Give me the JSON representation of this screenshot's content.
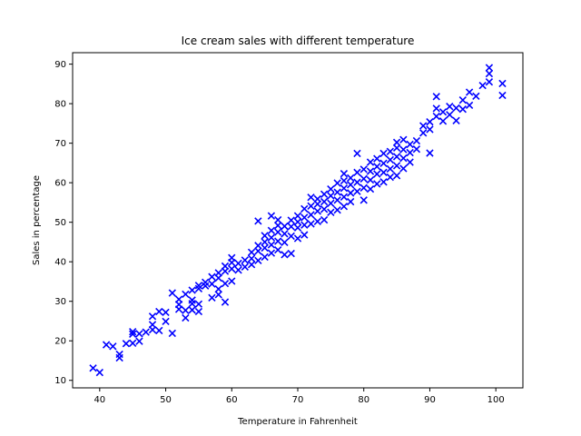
{
  "chart_data": {
    "type": "scatter",
    "title": "Ice cream sales with different temperature",
    "xlabel": "Temperature in Fahrenheit",
    "ylabel": "Sales in percentage",
    "xlim": [
      35.9,
      104.1
    ],
    "ylim": [
      8.1,
      92.9
    ],
    "xticks": [
      40,
      50,
      60,
      70,
      80,
      90,
      100
    ],
    "yticks": [
      10,
      20,
      30,
      40,
      50,
      60,
      70,
      80,
      90
    ],
    "grid": false,
    "legend": "none",
    "marker": "x",
    "color": "#0000ff",
    "series": [
      {
        "points": [
          [
            39,
            13.1
          ],
          [
            40,
            12.0
          ],
          [
            41,
            19.0
          ],
          [
            42,
            18.6
          ],
          [
            43,
            15.7
          ],
          [
            43,
            16.6
          ],
          [
            44,
            19.3
          ],
          [
            45,
            19.4
          ],
          [
            45,
            21.7
          ],
          [
            45,
            22.3
          ],
          [
            46,
            19.9
          ],
          [
            46,
            21.8
          ],
          [
            47,
            22.2
          ],
          [
            48,
            22.8
          ],
          [
            48,
            24.1
          ],
          [
            48,
            26.2
          ],
          [
            49,
            27.4
          ],
          [
            49,
            22.6
          ],
          [
            50,
            24.9
          ],
          [
            50,
            27.2
          ],
          [
            51,
            21.9
          ],
          [
            51,
            32.1
          ],
          [
            52,
            28.0
          ],
          [
            52,
            29.2
          ],
          [
            52,
            30.5
          ],
          [
            53,
            25.8
          ],
          [
            53,
            27.7
          ],
          [
            53,
            31.8
          ],
          [
            54,
            27.8
          ],
          [
            54,
            29.4
          ],
          [
            54,
            30.3
          ],
          [
            54,
            32.8
          ],
          [
            55,
            27.4
          ],
          [
            55,
            29.3
          ],
          [
            55,
            33.2
          ],
          [
            55,
            34.0
          ],
          [
            56,
            33.9
          ],
          [
            56,
            34.8
          ],
          [
            57,
            30.9
          ],
          [
            57,
            34.4
          ],
          [
            57,
            36.2
          ],
          [
            58,
            31.7
          ],
          [
            58,
            33.1
          ],
          [
            58,
            35.9
          ],
          [
            58,
            37.2
          ],
          [
            59,
            29.8
          ],
          [
            59,
            34.5
          ],
          [
            59,
            37.6
          ],
          [
            59,
            38.9
          ],
          [
            60,
            35.1
          ],
          [
            60,
            38.2
          ],
          [
            60,
            39.8
          ],
          [
            60,
            41.0
          ],
          [
            61,
            37.9
          ],
          [
            61,
            39.6
          ],
          [
            62,
            38.7
          ],
          [
            62,
            40.4
          ],
          [
            63,
            39.3
          ],
          [
            63,
            40.8
          ],
          [
            63,
            42.4
          ],
          [
            64,
            40.3
          ],
          [
            64,
            42.7
          ],
          [
            64,
            44.1
          ],
          [
            64,
            50.3
          ],
          [
            65,
            41.2
          ],
          [
            65,
            43.5
          ],
          [
            65,
            45.0
          ],
          [
            65,
            46.6
          ],
          [
            66,
            42.2
          ],
          [
            66,
            44.3
          ],
          [
            66,
            46.1
          ],
          [
            66,
            47.9
          ],
          [
            66,
            51.6
          ],
          [
            67,
            43.0
          ],
          [
            67,
            45.2
          ],
          [
            67,
            47.5
          ],
          [
            67,
            49.2
          ],
          [
            67,
            50.6
          ],
          [
            68,
            41.8
          ],
          [
            68,
            44.9
          ],
          [
            68,
            47.1
          ],
          [
            68,
            49.0
          ],
          [
            69,
            42.1
          ],
          [
            69,
            46.5
          ],
          [
            69,
            48.9
          ],
          [
            69,
            50.5
          ],
          [
            70,
            45.9
          ],
          [
            70,
            48.6
          ],
          [
            70,
            50.1
          ],
          [
            70,
            51.6
          ],
          [
            71,
            46.8
          ],
          [
            71,
            49.3
          ],
          [
            71,
            51.2
          ],
          [
            71,
            53.4
          ],
          [
            72,
            49.6
          ],
          [
            72,
            51.9
          ],
          [
            72,
            54.1
          ],
          [
            72,
            56.3
          ],
          [
            73,
            50.2
          ],
          [
            73,
            52.8
          ],
          [
            73,
            54.6
          ],
          [
            73,
            55.9
          ],
          [
            74,
            50.6
          ],
          [
            74,
            53.3
          ],
          [
            74,
            55.2
          ],
          [
            74,
            57.1
          ],
          [
            75,
            52.5
          ],
          [
            75,
            54.8
          ],
          [
            75,
            56.7
          ],
          [
            75,
            58.4
          ],
          [
            76,
            53.1
          ],
          [
            76,
            55.6
          ],
          [
            76,
            57.6
          ],
          [
            76,
            59.9
          ],
          [
            77,
            54.0
          ],
          [
            77,
            56.4
          ],
          [
            77,
            58.6
          ],
          [
            77,
            60.5
          ],
          [
            77,
            62.3
          ],
          [
            78,
            55.2
          ],
          [
            78,
            57.4
          ],
          [
            78,
            59.5
          ],
          [
            78,
            61.2
          ],
          [
            79,
            57.8
          ],
          [
            79,
            60.1
          ],
          [
            79,
            62.6
          ],
          [
            79,
            67.4
          ],
          [
            80,
            55.6
          ],
          [
            80,
            58.7
          ],
          [
            80,
            61.0
          ],
          [
            80,
            63.4
          ],
          [
            81,
            58.4
          ],
          [
            81,
            60.7
          ],
          [
            81,
            62.9
          ],
          [
            81,
            65.2
          ],
          [
            82,
            59.7
          ],
          [
            82,
            62.2
          ],
          [
            82,
            64.1
          ],
          [
            82,
            66.1
          ],
          [
            83,
            60.2
          ],
          [
            83,
            62.6
          ],
          [
            83,
            64.9
          ],
          [
            83,
            67.4
          ],
          [
            84,
            61.4
          ],
          [
            84,
            63.5
          ],
          [
            84,
            65.8
          ],
          [
            84,
            67.9
          ],
          [
            85,
            61.8
          ],
          [
            85,
            64.3
          ],
          [
            85,
            66.6
          ],
          [
            85,
            68.8
          ],
          [
            85,
            70.2
          ],
          [
            86,
            63.6
          ],
          [
            86,
            66.2
          ],
          [
            86,
            68.4
          ],
          [
            86,
            70.9
          ],
          [
            87,
            65.2
          ],
          [
            87,
            67.6
          ],
          [
            87,
            69.7
          ],
          [
            88,
            68.5
          ],
          [
            88,
            70.6
          ],
          [
            89,
            72.6
          ],
          [
            89,
            74.4
          ],
          [
            90,
            67.5
          ],
          [
            90,
            73.5
          ],
          [
            90,
            75.4
          ],
          [
            91,
            76.8
          ],
          [
            91,
            78.8
          ],
          [
            91,
            81.8
          ],
          [
            92,
            75.6
          ],
          [
            92,
            77.9
          ],
          [
            93,
            77.2
          ],
          [
            93,
            79.3
          ],
          [
            94,
            75.7
          ],
          [
            94,
            78.9
          ],
          [
            95,
            78.6
          ],
          [
            95,
            80.9
          ],
          [
            96,
            79.6
          ],
          [
            96,
            82.9
          ],
          [
            97,
            81.9
          ],
          [
            98,
            84.6
          ],
          [
            99,
            85.5
          ],
          [
            99,
            87.6
          ],
          [
            99,
            89.1
          ],
          [
            101,
            82.1
          ],
          [
            101,
            85.1
          ]
        ]
      }
    ]
  }
}
